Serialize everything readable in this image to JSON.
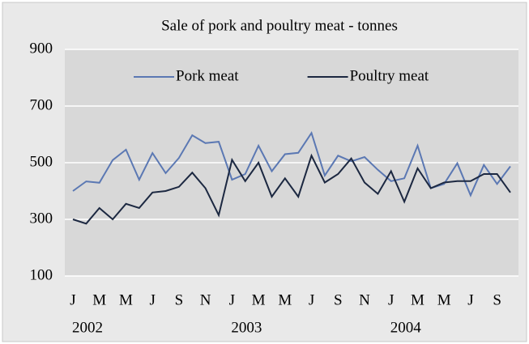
{
  "chart_data": {
    "type": "line",
    "title": "Sale of pork and poultry meat - tonnes",
    "categories": [
      "J",
      null,
      "M",
      null,
      "M",
      null,
      "J",
      null,
      "S",
      null,
      "N",
      null,
      "J",
      null,
      "M",
      null,
      "M",
      null,
      "J",
      null,
      "S",
      null,
      "N",
      null,
      "J",
      null,
      "M",
      null,
      "M",
      null,
      "J",
      null,
      "S",
      null
    ],
    "x_groups": [
      "2002",
      null,
      null,
      null,
      null,
      null,
      null,
      null,
      null,
      null,
      null,
      null,
      "2003",
      null,
      null,
      null,
      null,
      null,
      null,
      null,
      null,
      null,
      null,
      null,
      "2004",
      null,
      null,
      null,
      null,
      null,
      null,
      null,
      null,
      null
    ],
    "series": [
      {
        "name": "Pork meat",
        "color": "#5b78b3",
        "values": [
          400,
          434,
          429,
          509,
          546,
          440,
          534,
          463,
          517,
          597,
          569,
          574,
          440,
          460,
          560,
          470,
          530,
          535,
          605,
          455,
          525,
          505,
          520,
          475,
          435,
          445,
          560,
          410,
          425,
          498,
          385,
          492,
          425,
          487
        ]
      },
      {
        "name": "Poultry meat",
        "color": "#1c2841",
        "values": [
          300,
          285,
          340,
          300,
          355,
          340,
          395,
          400,
          415,
          465,
          410,
          315,
          510,
          435,
          500,
          380,
          445,
          380,
          525,
          430,
          460,
          515,
          430,
          390,
          470,
          362,
          480,
          410,
          430,
          435,
          435,
          460,
          460,
          395
        ]
      }
    ],
    "ylim": [
      100,
      900
    ],
    "yticks": [
      100,
      300,
      500,
      700,
      900
    ],
    "grid": true,
    "legend": "top"
  }
}
